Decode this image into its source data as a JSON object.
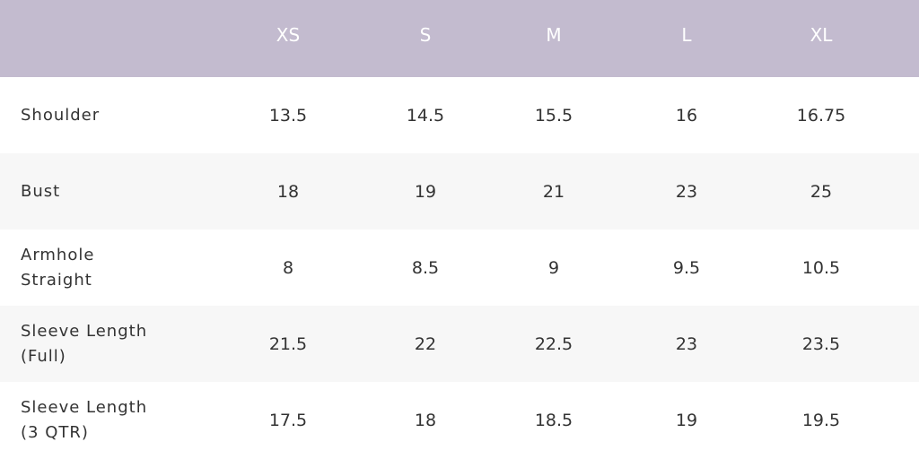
{
  "table": {
    "header": [
      "XS",
      "S",
      "M",
      "L",
      "XL"
    ],
    "rows": [
      {
        "label": [
          "Shoulder"
        ],
        "cells": [
          "13.5",
          "14.5",
          "15.5",
          "16",
          "16.75"
        ]
      },
      {
        "label": [
          "Bust"
        ],
        "cells": [
          "18",
          "19",
          "21",
          "23",
          "25"
        ]
      },
      {
        "label": [
          "Armhole",
          "Straight"
        ],
        "cells": [
          "8",
          "8.5",
          "9",
          "9.5",
          "10.5"
        ]
      },
      {
        "label": [
          "Sleeve Length",
          "(Full)"
        ],
        "cells": [
          "21.5",
          "22",
          "22.5",
          "23",
          "23.5"
        ]
      },
      {
        "label": [
          "Sleeve Length",
          "(3 QTR)"
        ],
        "cells": [
          "17.5",
          "18",
          "18.5",
          "19",
          "19.5"
        ]
      }
    ]
  }
}
